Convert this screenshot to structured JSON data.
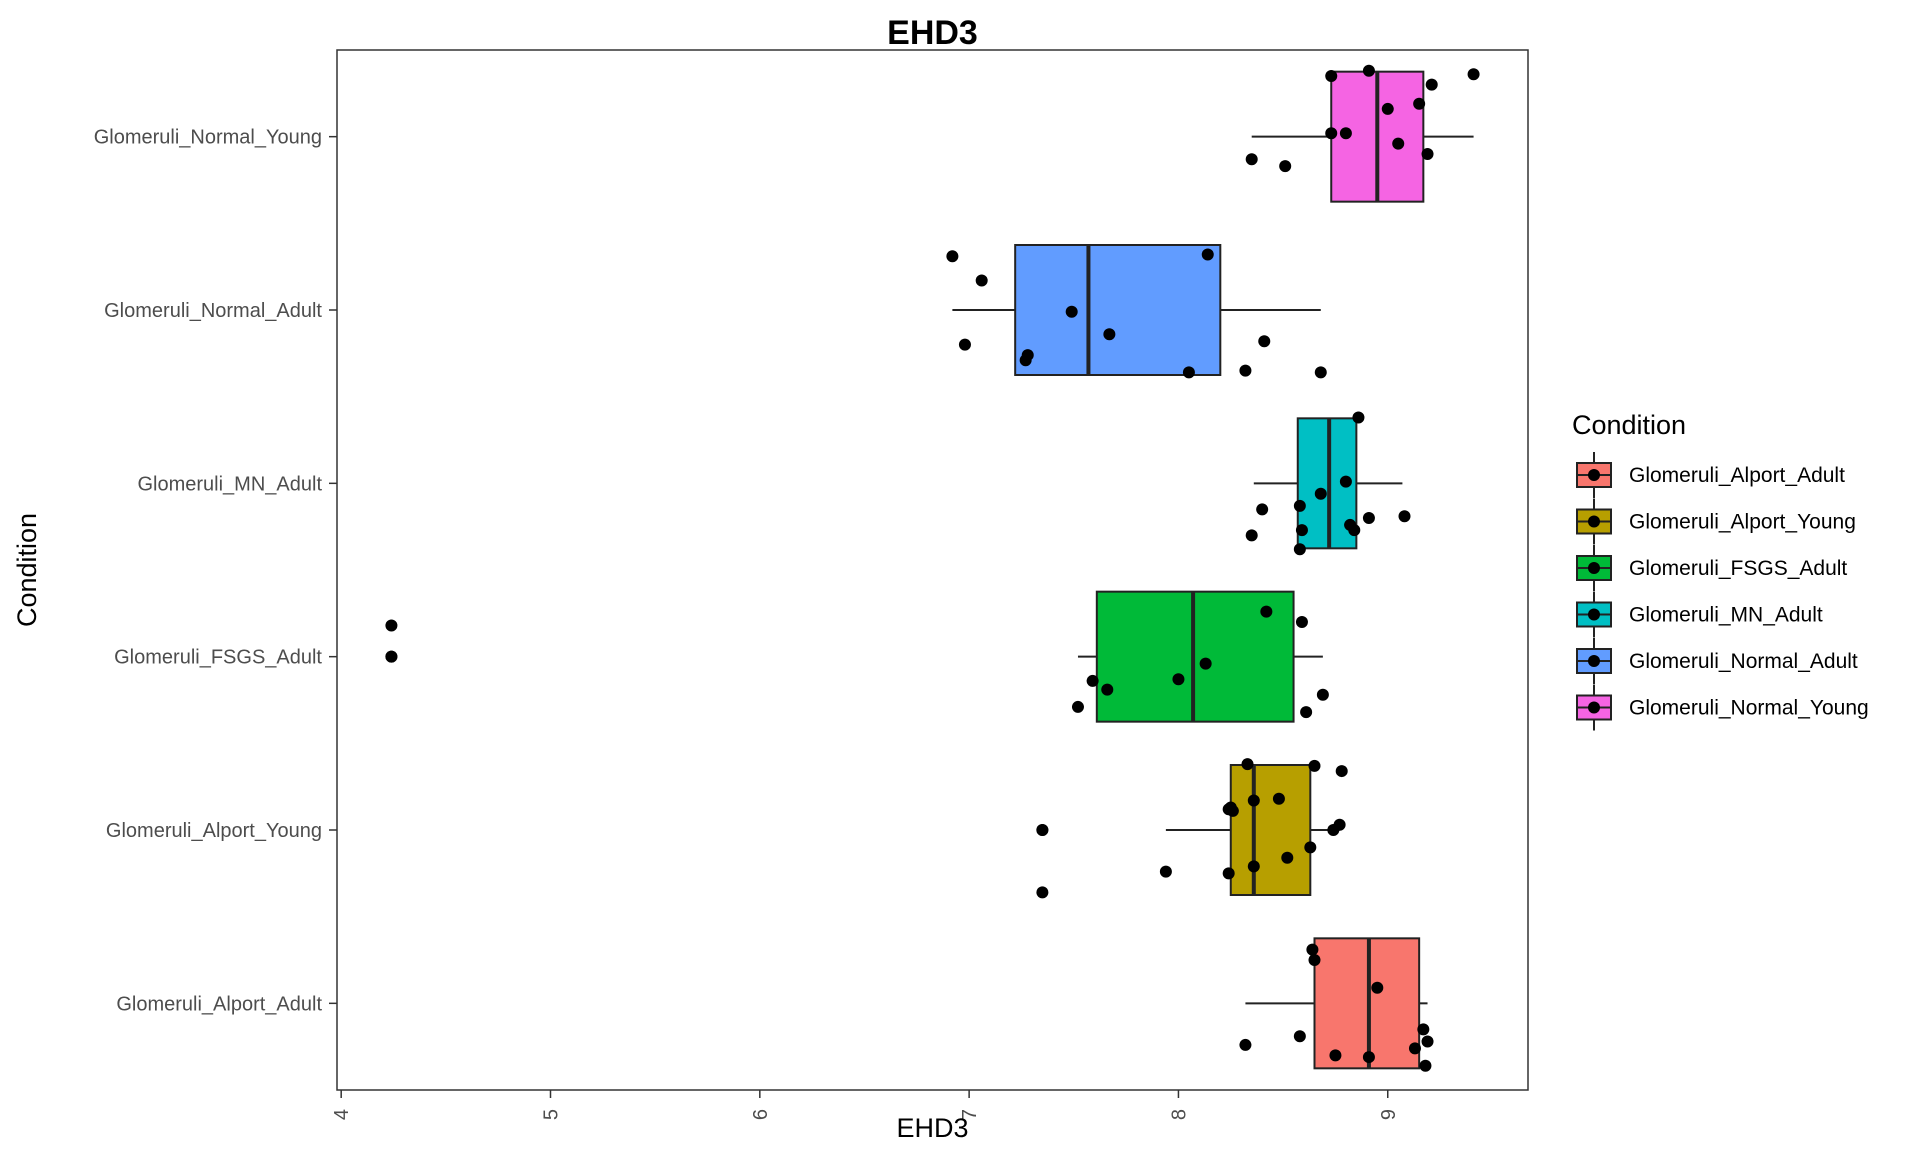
{
  "chart_data": {
    "type": "boxplot",
    "title": "EHD3",
    "xlabel": "EHD3",
    "ylabel": "Condition",
    "xlim": [
      3.98,
      9.67
    ],
    "xticks": [
      4,
      5,
      6,
      7,
      8,
      9
    ],
    "xtick_labels": [
      "4",
      "5",
      "6",
      "7",
      "8",
      "9"
    ],
    "grid": false,
    "orientation": "horizontal",
    "categories": [
      "Glomeruli_Alport_Adult",
      "Glomeruli_Alport_Young",
      "Glomeruli_FSGS_Adult",
      "Glomeruli_MN_Adult",
      "Glomeruli_Normal_Adult",
      "Glomeruli_Normal_Young"
    ],
    "legend": {
      "title": "Condition",
      "position": "right",
      "entries": [
        "Glomeruli_Alport_Adult",
        "Glomeruli_Alport_Young",
        "Glomeruli_FSGS_Adult",
        "Glomeruli_MN_Adult",
        "Glomeruli_Normal_Adult",
        "Glomeruli_Normal_Young"
      ]
    },
    "series": [
      {
        "name": "Glomeruli_Alport_Adult",
        "color": "#F8766D",
        "whisker_low": 8.32,
        "q1": 8.65,
        "median": 8.91,
        "q3": 9.15,
        "whisker_high": 9.19,
        "outliers": [],
        "points": [
          [
            8.64,
            0.31
          ],
          [
            8.65,
            0.25
          ],
          [
            8.95,
            0.09
          ],
          [
            8.32,
            -0.24
          ],
          [
            8.58,
            -0.19
          ],
          [
            8.75,
            -0.3
          ],
          [
            8.91,
            -0.31
          ],
          [
            9.13,
            -0.26
          ],
          [
            9.17,
            -0.15
          ],
          [
            9.19,
            -0.22
          ],
          [
            9.18,
            -0.36
          ]
        ]
      },
      {
        "name": "Glomeruli_Alport_Young",
        "color": "#B79F00",
        "whisker_low": 7.94,
        "q1": 8.25,
        "median": 8.36,
        "q3": 8.63,
        "whisker_high": 8.77,
        "outliers": [
          7.35
        ],
        "points": [
          [
            8.33,
            0.38
          ],
          [
            8.65,
            0.37
          ],
          [
            8.78,
            0.34
          ],
          [
            8.36,
            0.17
          ],
          [
            8.48,
            0.18
          ],
          [
            8.25,
            0.13
          ],
          [
            8.24,
            0.12
          ],
          [
            8.26,
            0.11
          ],
          [
            8.77,
            0.03
          ],
          [
            8.74,
            0.0
          ],
          [
            8.63,
            -0.1
          ],
          [
            8.52,
            -0.16
          ],
          [
            8.36,
            -0.21
          ],
          [
            8.24,
            -0.25
          ],
          [
            7.94,
            -0.24
          ],
          [
            7.35,
            0.0
          ],
          [
            7.35,
            -0.36
          ]
        ]
      },
      {
        "name": "Glomeruli_FSGS_Adult",
        "color": "#00BA38",
        "whisker_low": 7.52,
        "q1": 7.61,
        "median": 8.07,
        "q3": 8.55,
        "whisker_high": 8.69,
        "outliers": [
          4.24
        ],
        "points": [
          [
            8.42,
            0.26
          ],
          [
            8.59,
            0.2
          ],
          [
            8.13,
            -0.04
          ],
          [
            8.0,
            -0.13
          ],
          [
            7.59,
            -0.14
          ],
          [
            7.66,
            -0.19
          ],
          [
            8.69,
            -0.22
          ],
          [
            7.52,
            -0.29
          ],
          [
            8.61,
            -0.32
          ],
          [
            4.24,
            0.18
          ],
          [
            4.24,
            0.0
          ]
        ]
      },
      {
        "name": "Glomeruli_MN_Adult",
        "color": "#00BFC4",
        "whisker_low": 8.36,
        "q1": 8.57,
        "median": 8.72,
        "q3": 8.85,
        "whisker_high": 9.07,
        "outliers": [],
        "points": [
          [
            8.86,
            0.38
          ],
          [
            8.8,
            0.01
          ],
          [
            8.68,
            -0.06
          ],
          [
            8.58,
            -0.13
          ],
          [
            8.4,
            -0.15
          ],
          [
            8.91,
            -0.2
          ],
          [
            9.08,
            -0.19
          ],
          [
            8.82,
            -0.24
          ],
          [
            8.84,
            -0.27
          ],
          [
            8.59,
            -0.27
          ],
          [
            8.35,
            -0.3
          ],
          [
            8.58,
            -0.38
          ]
        ]
      },
      {
        "name": "Glomeruli_Normal_Adult",
        "color": "#619CFF",
        "whisker_low": 6.92,
        "q1": 7.22,
        "median": 7.57,
        "q3": 8.2,
        "whisker_high": 8.68,
        "outliers": [],
        "points": [
          [
            6.92,
            0.31
          ],
          [
            8.14,
            0.32
          ],
          [
            7.06,
            0.17
          ],
          [
            7.49,
            -0.01
          ],
          [
            7.67,
            -0.14
          ],
          [
            8.41,
            -0.18
          ],
          [
            6.98,
            -0.2
          ],
          [
            7.28,
            -0.26
          ],
          [
            7.27,
            -0.29
          ],
          [
            8.32,
            -0.35
          ],
          [
            8.68,
            -0.36
          ],
          [
            8.05,
            -0.36
          ]
        ]
      },
      {
        "name": "Glomeruli_Normal_Young",
        "color": "#F564E3",
        "whisker_low": 8.35,
        "q1": 8.73,
        "median": 8.95,
        "q3": 9.17,
        "whisker_high": 9.41,
        "outliers": [],
        "points": [
          [
            8.91,
            0.38
          ],
          [
            8.73,
            0.35
          ],
          [
            9.41,
            0.36
          ],
          [
            9.21,
            0.3
          ],
          [
            9.15,
            0.19
          ],
          [
            9.0,
            0.16
          ],
          [
            8.73,
            0.02
          ],
          [
            8.8,
            0.02
          ],
          [
            9.05,
            -0.04
          ],
          [
            9.19,
            -0.1
          ],
          [
            8.35,
            -0.13
          ],
          [
            8.51,
            -0.17
          ]
        ]
      }
    ]
  }
}
